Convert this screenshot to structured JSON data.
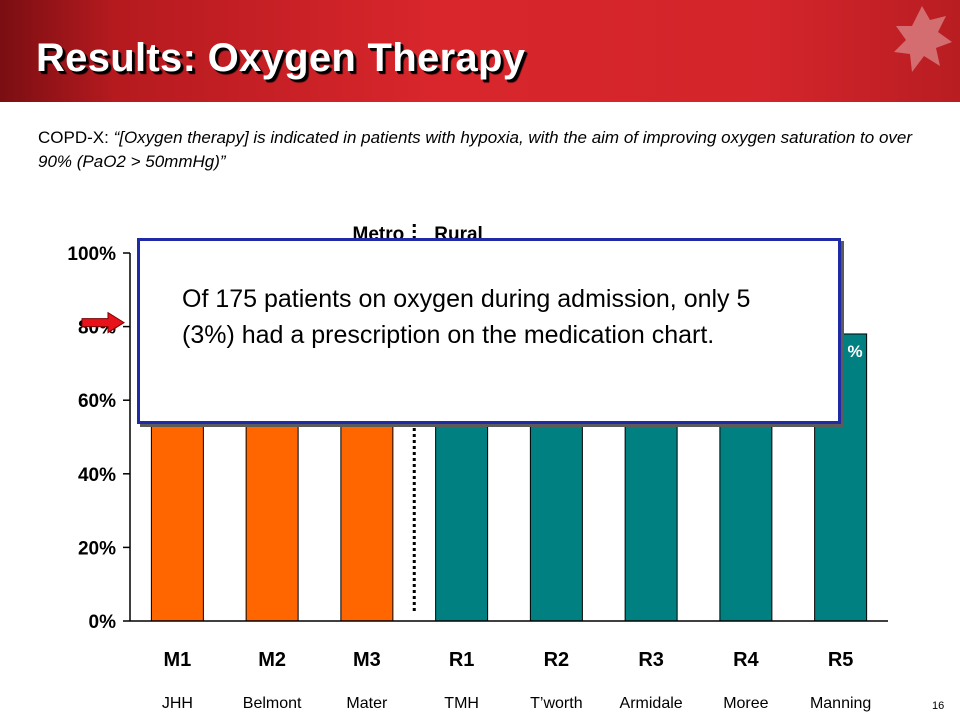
{
  "slide": {
    "title": "Results: Oxygen Therapy",
    "quote_source": "COPD-X: ",
    "quote_text": "“[Oxygen therapy] is indicated in patients with hypoxia, with the aim of improving oxygen saturation to over 90% (PaO2 > 50mmHg)”",
    "callout_text": "Of 175 patients on oxygen during admission, only 5 (3%) had a prescription on the medication chart.",
    "page_number": "16"
  },
  "colors": {
    "metro_bar": "#ff6600",
    "rural_bar": "#008080",
    "header_red": "#d8262c",
    "callout_border": "#1f2aa6",
    "arrow_red": "#e8121a"
  },
  "chart_data": {
    "type": "bar",
    "categories": [
      "M1",
      "M2",
      "M3",
      "R1",
      "R2",
      "R3",
      "R4",
      "R5"
    ],
    "sites": [
      "JHH",
      "Belmont",
      "Mater",
      "TMH",
      "T’worth",
      "Armidale",
      "Moree",
      "Manning"
    ],
    "groups": [
      "Metro",
      "Metro",
      "Metro",
      "Rural",
      "Rural",
      "Rural",
      "Rural",
      "Rural"
    ],
    "values": [
      80,
      80,
      80,
      80,
      80,
      80,
      80,
      78
    ],
    "visible_value_label": {
      "category": "R5",
      "text": "%"
    },
    "group_labels": [
      "Metro",
      "Rural"
    ],
    "group_divider_after": "M3",
    "y_ticks": [
      "0%",
      "20%",
      "40%",
      "60%",
      "80%",
      "100%"
    ],
    "ylim": [
      0,
      100
    ],
    "marker": {
      "shape": "arrow",
      "points_at": 80
    },
    "grid": false,
    "legend": "none"
  }
}
